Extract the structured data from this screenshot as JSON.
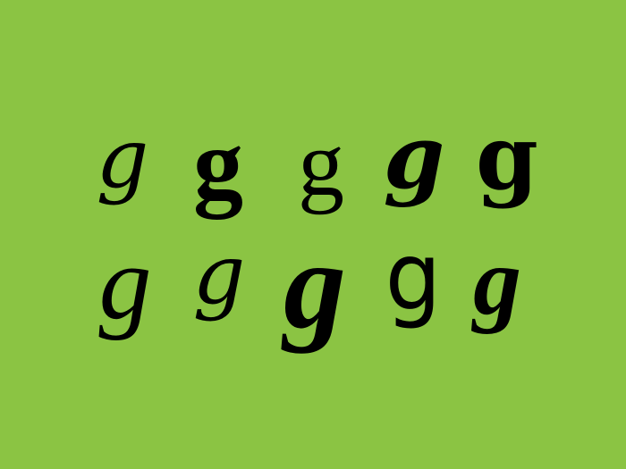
{
  "colors": {
    "background": "#8bc443",
    "glyph": "#000000"
  },
  "glyphs": {
    "row1": [
      "g",
      "g",
      "g",
      "g",
      "g"
    ],
    "row2": [
      "g",
      "g",
      "g",
      "g",
      "g"
    ]
  }
}
